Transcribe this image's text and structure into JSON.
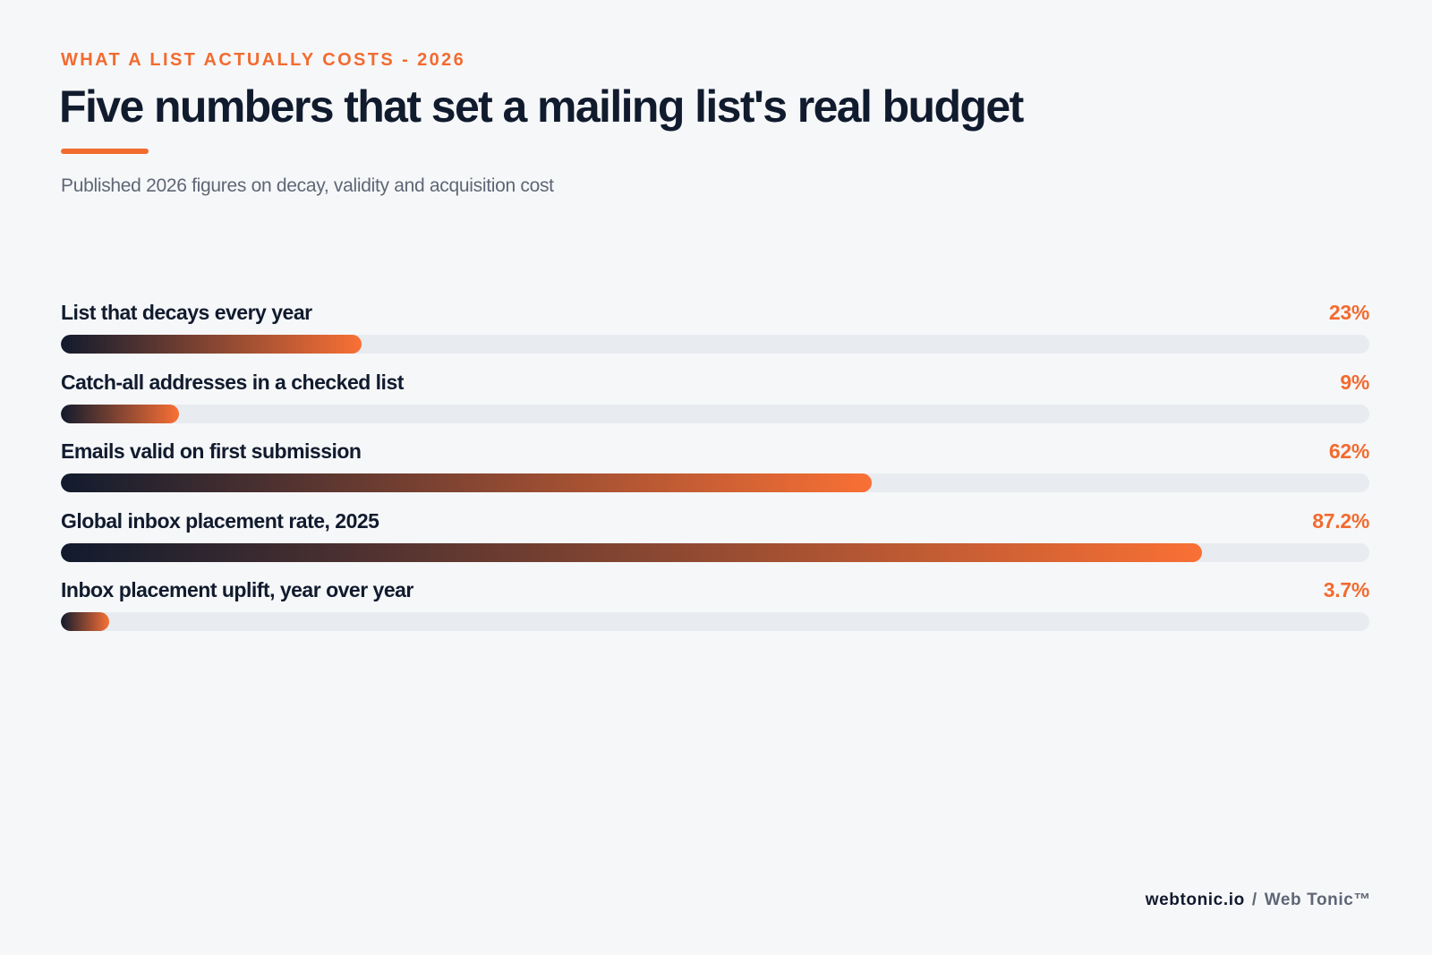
{
  "header": {
    "eyebrow": "WHAT A LIST ACTUALLY COSTS - 2026",
    "title": "Five numbers that set a mailing list's real budget",
    "subtitle": "Published 2026 figures on decay, validity and acquisition cost"
  },
  "footer": {
    "site": "webtonic.io",
    "separator": "/",
    "brand": "Web Tonic™"
  },
  "colors": {
    "accent": "#f26b2f",
    "navy": "#111b2e",
    "track": "#e8ebef",
    "background": "#f6f7f9"
  },
  "chart_data": {
    "type": "bar",
    "orientation": "horizontal",
    "categories": [
      "List that decays every year",
      "Catch-all addresses in a checked list",
      "Emails valid on first submission",
      "Global inbox placement rate, 2025",
      "Inbox placement uplift, year over year"
    ],
    "values": [
      23,
      9,
      62,
      87.2,
      3.7
    ],
    "value_labels": [
      "23%",
      "9%",
      "62%",
      "87.2%",
      "3.7%"
    ],
    "unit": "%",
    "xlim": [
      0,
      100
    ],
    "grid": false,
    "legend": "none"
  }
}
